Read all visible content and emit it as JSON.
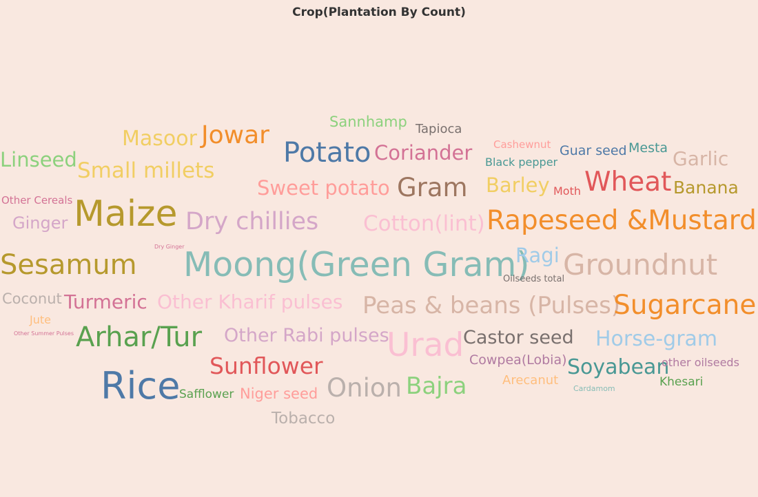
{
  "chart_data": {
    "type": "wordcloud",
    "title": "Crop(Plantation By Count)",
    "words": [
      {
        "text": "Sannhamp",
        "color": "#8cd17d"
      },
      {
        "text": "Tapioca",
        "color": "#79706e"
      },
      {
        "text": "Masoor",
        "color": "#f1ce63"
      },
      {
        "text": "Jowar",
        "color": "#f28e2b"
      },
      {
        "text": "Potato",
        "color": "#4e79a7"
      },
      {
        "text": "Coriander",
        "color": "#d37295"
      },
      {
        "text": "Cashewnut",
        "color": "#ff9d9a"
      },
      {
        "text": "Guar seed",
        "color": "#4e79a7"
      },
      {
        "text": "Mesta",
        "color": "#499894"
      },
      {
        "text": "Garlic",
        "color": "#d7b5a6"
      },
      {
        "text": "Linseed",
        "color": "#8cd17d"
      },
      {
        "text": "Small millets",
        "color": "#f1ce63"
      },
      {
        "text": "Black pepper",
        "color": "#499894"
      },
      {
        "text": "Sweet potato",
        "color": "#ff9d9a"
      },
      {
        "text": "Gram",
        "color": "#9d7660"
      },
      {
        "text": "Barley",
        "color": "#f1ce63"
      },
      {
        "text": "Moth",
        "color": "#e15759"
      },
      {
        "text": "Wheat",
        "color": "#e15759"
      },
      {
        "text": "Banana",
        "color": "#b6992d"
      },
      {
        "text": "Other Cereals",
        "color": "#d37295"
      },
      {
        "text": "Maize",
        "color": "#b6992d"
      },
      {
        "text": "Dry chillies",
        "color": "#d4a6c8"
      },
      {
        "text": "Ginger",
        "color": "#d4a6c8"
      },
      {
        "text": "Cotton(lint)",
        "color": "#fabfd2"
      },
      {
        "text": "Rapeseed &Mustard",
        "color": "#f28e2b"
      },
      {
        "text": "Dry Ginger",
        "color": "#d37295"
      },
      {
        "text": "Sesamum",
        "color": "#b6992d"
      },
      {
        "text": "Moong(Green Gram)",
        "color": "#86bcb6"
      },
      {
        "text": "Ragi",
        "color": "#a0cbe8"
      },
      {
        "text": "Groundnut",
        "color": "#d7b5a6"
      },
      {
        "text": "Oilseeds total",
        "color": "#79706e"
      },
      {
        "text": "Coconut",
        "color": "#bab0ac"
      },
      {
        "text": "Turmeric",
        "color": "#d37295"
      },
      {
        "text": "Other Kharif pulses",
        "color": "#fabfd2"
      },
      {
        "text": "Peas & beans (Pulses)",
        "color": "#d7b5a6"
      },
      {
        "text": "Sugarcane",
        "color": "#f28e2b"
      },
      {
        "text": "Jute",
        "color": "#ffbe7d"
      },
      {
        "text": "Other Summer Pulses",
        "color": "#d37295"
      },
      {
        "text": "Arhar/Tur",
        "color": "#59a14f"
      },
      {
        "text": "Other Rabi pulses",
        "color": "#d4a6c8"
      },
      {
        "text": "Urad",
        "color": "#fabfd2"
      },
      {
        "text": "Castor seed",
        "color": "#79706e"
      },
      {
        "text": "Horse-gram",
        "color": "#a0cbe8"
      },
      {
        "text": "Sunflower",
        "color": "#e15759"
      },
      {
        "text": "Cowpea(Lobia)",
        "color": "#b07aa1"
      },
      {
        "text": "Soyabean",
        "color": "#499894"
      },
      {
        "text": "other oilseeds",
        "color": "#b07aa1"
      },
      {
        "text": "Rice",
        "color": "#4e79a7"
      },
      {
        "text": "Safflower",
        "color": "#59a14f"
      },
      {
        "text": "Niger seed",
        "color": "#ff9d9a"
      },
      {
        "text": "Onion",
        "color": "#bab0ac"
      },
      {
        "text": "Bajra",
        "color": "#8cd17d"
      },
      {
        "text": "Arecanut",
        "color": "#ffbe7d"
      },
      {
        "text": "Khesari",
        "color": "#59a14f"
      },
      {
        "text": "Cardamom",
        "color": "#86bcb6"
      },
      {
        "text": "Tobacco",
        "color": "#bab0ac"
      }
    ]
  }
}
